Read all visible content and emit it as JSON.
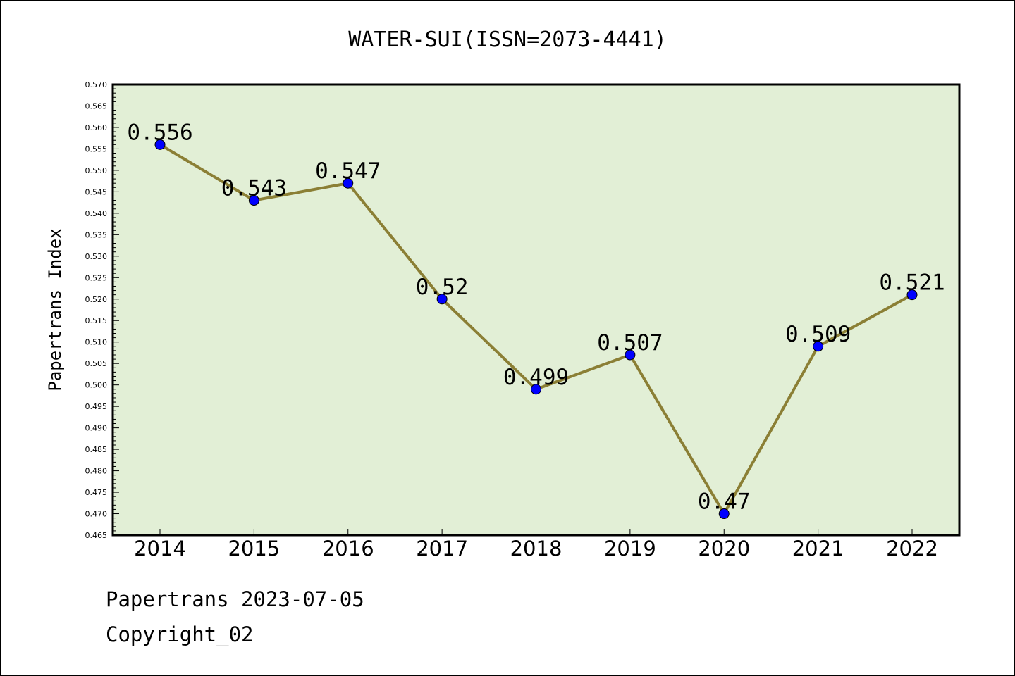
{
  "chart_data": {
    "type": "line",
    "title": "WATER-SUI(ISSN=2073-4441)",
    "xlabel": "",
    "ylabel": "Papertrans Index",
    "categories": [
      "2014",
      "2015",
      "2016",
      "2017",
      "2018",
      "2019",
      "2020",
      "2021",
      "2022"
    ],
    "series": [
      {
        "values": [
          0.556,
          0.543,
          0.547,
          0.52,
          0.499,
          0.507,
          0.47,
          0.509,
          0.521
        ],
        "labels": [
          "0.556",
          "0.543",
          "0.547",
          "0.52",
          "0.499",
          "0.507",
          "0.47",
          "0.509",
          "0.521"
        ]
      }
    ],
    "ylim": [
      0.465,
      0.57
    ],
    "y_major_step": 0.005,
    "y_minor_step": 0.001,
    "y_tick_labels": [
      "0.465",
      "0.470",
      "0.475",
      "0.480",
      "0.485",
      "0.490",
      "0.495",
      "0.500",
      "0.505",
      "0.510",
      "0.515",
      "0.520",
      "0.525",
      "0.530",
      "0.535",
      "0.540",
      "0.545",
      "0.550",
      "0.555",
      "0.560",
      "0.565",
      "0.570"
    ],
    "grid": false,
    "legend": "none",
    "colors": {
      "plot_background": "#e2efd6",
      "line": "#8b7f35",
      "marker": "#0000ff",
      "axis": "#000000"
    }
  },
  "footer": {
    "line1": "Papertrans 2023-07-05",
    "line2": "Copyright_02"
  }
}
